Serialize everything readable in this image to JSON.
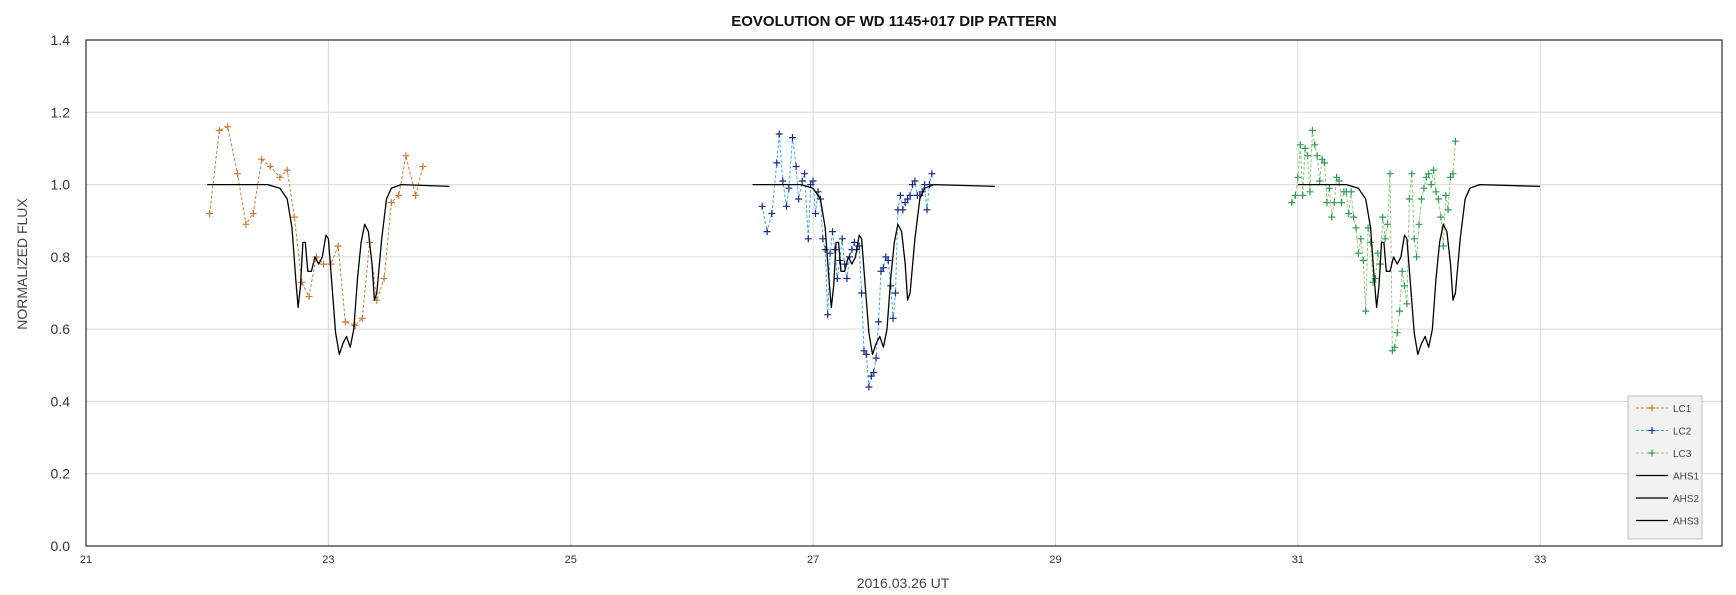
{
  "chart_data": {
    "type": "line",
    "title": "EOVOLUTION OF WD 1145+017 DIP PATTERN",
    "xlabel": "2016.03.26 UT",
    "ylabel": "NORMALIZED FLUX",
    "xlim": [
      21,
      34.5
    ],
    "ylim": [
      0,
      1.4
    ],
    "x_ticks": [
      "21",
      "23",
      "25",
      "27",
      "29",
      "31",
      "33"
    ],
    "y_ticks": [
      "0.0",
      "0.2",
      "0.4",
      "0.6",
      "0.8",
      "1.0",
      "1.2",
      "1.4"
    ],
    "grid": true,
    "legend_position": "bottom-right",
    "colors": {
      "LC1": "#c97d33",
      "LC2": "#1f2a8a",
      "LC2_line": "#3aaee0",
      "LC3": "#2e9e55",
      "LC3_line": "#8ccc72",
      "AHS": "#000000"
    },
    "series": [
      {
        "name": "LC1",
        "style": "dashed-markers",
        "points": [
          [
            22.02,
            0.92
          ],
          [
            22.1,
            1.15
          ],
          [
            22.17,
            1.16
          ],
          [
            22.25,
            1.03
          ],
          [
            22.32,
            0.89
          ],
          [
            22.38,
            0.92
          ],
          [
            22.45,
            1.07
          ],
          [
            22.52,
            1.05
          ],
          [
            22.6,
            1.02
          ],
          [
            22.66,
            1.04
          ],
          [
            22.72,
            0.91
          ],
          [
            22.78,
            0.73
          ],
          [
            22.84,
            0.69
          ],
          [
            22.9,
            0.8
          ],
          [
            22.96,
            0.78
          ],
          [
            23.02,
            0.78
          ],
          [
            23.08,
            0.83
          ],
          [
            23.14,
            0.62
          ],
          [
            23.22,
            0.61
          ],
          [
            23.28,
            0.63
          ],
          [
            23.34,
            0.84
          ],
          [
            23.4,
            0.68
          ],
          [
            23.46,
            0.74
          ],
          [
            23.52,
            0.95
          ],
          [
            23.58,
            0.97
          ],
          [
            23.64,
            1.08
          ],
          [
            23.72,
            0.97
          ],
          [
            23.78,
            1.05
          ]
        ]
      },
      {
        "name": "LC2",
        "style": "dashed-markers",
        "points": [
          [
            26.58,
            0.94
          ],
          [
            26.62,
            0.87
          ],
          [
            26.66,
            0.92
          ],
          [
            26.7,
            1.06
          ],
          [
            26.72,
            1.14
          ],
          [
            26.75,
            1.01
          ],
          [
            26.78,
            0.94
          ],
          [
            26.8,
            0.99
          ],
          [
            26.83,
            1.13
          ],
          [
            26.86,
            1.05
          ],
          [
            26.88,
            0.96
          ],
          [
            26.91,
            1.01
          ],
          [
            26.93,
            1.03
          ],
          [
            26.96,
            0.85
          ],
          [
            26.98,
            1.0
          ],
          [
            27.0,
            1.01
          ],
          [
            27.02,
            0.92
          ],
          [
            27.04,
            0.98
          ],
          [
            27.06,
            0.96
          ],
          [
            27.08,
            0.85
          ],
          [
            27.1,
            0.82
          ],
          [
            27.12,
            0.64
          ],
          [
            27.14,
            0.81
          ],
          [
            27.16,
            0.87
          ],
          [
            27.18,
            0.82
          ],
          [
            27.2,
            0.74
          ],
          [
            27.22,
            0.79
          ],
          [
            27.24,
            0.85
          ],
          [
            27.26,
            0.78
          ],
          [
            27.28,
            0.74
          ],
          [
            27.3,
            0.8
          ],
          [
            27.32,
            0.82
          ],
          [
            27.34,
            0.84
          ],
          [
            27.36,
            0.82
          ],
          [
            27.38,
            0.83
          ],
          [
            27.4,
            0.7
          ],
          [
            27.42,
            0.54
          ],
          [
            27.44,
            0.53
          ],
          [
            27.46,
            0.44
          ],
          [
            27.48,
            0.47
          ],
          [
            27.5,
            0.48
          ],
          [
            27.52,
            0.52
          ],
          [
            27.54,
            0.62
          ],
          [
            27.56,
            0.76
          ],
          [
            27.58,
            0.77
          ],
          [
            27.6,
            0.8
          ],
          [
            27.62,
            0.79
          ],
          [
            27.64,
            0.72
          ],
          [
            27.66,
            0.63
          ],
          [
            27.68,
            0.7
          ],
          [
            27.7,
            0.93
          ],
          [
            27.72,
            0.97
          ],
          [
            27.74,
            0.93
          ],
          [
            27.76,
            0.95
          ],
          [
            27.78,
            0.96
          ],
          [
            27.8,
            0.97
          ],
          [
            27.82,
            1.0
          ],
          [
            27.84,
            1.01
          ],
          [
            27.86,
            0.97
          ],
          [
            27.88,
            0.97
          ],
          [
            27.9,
            0.98
          ],
          [
            27.92,
            1.0
          ],
          [
            27.94,
            0.93
          ],
          [
            27.96,
            1.0
          ],
          [
            27.98,
            1.03
          ]
        ]
      },
      {
        "name": "LC3",
        "style": "dashed-markers",
        "points": [
          [
            30.95,
            0.95
          ],
          [
            30.98,
            0.97
          ],
          [
            31.0,
            1.02
          ],
          [
            31.02,
            1.11
          ],
          [
            31.04,
            0.97
          ],
          [
            31.06,
            1.1
          ],
          [
            31.08,
            1.08
          ],
          [
            31.1,
            0.98
          ],
          [
            31.12,
            1.15
          ],
          [
            31.14,
            1.11
          ],
          [
            31.16,
            1.08
          ],
          [
            31.18,
            1.01
          ],
          [
            31.2,
            1.07
          ],
          [
            31.22,
            1.06
          ],
          [
            31.24,
            0.95
          ],
          [
            31.26,
            0.99
          ],
          [
            31.28,
            0.91
          ],
          [
            31.3,
            0.95
          ],
          [
            31.32,
            1.02
          ],
          [
            31.34,
            1.01
          ],
          [
            31.36,
            0.95
          ],
          [
            31.38,
            0.98
          ],
          [
            31.4,
            0.98
          ],
          [
            31.42,
            0.92
          ],
          [
            31.44,
            0.98
          ],
          [
            31.46,
            0.91
          ],
          [
            31.48,
            0.88
          ],
          [
            31.5,
            0.81
          ],
          [
            31.52,
            0.85
          ],
          [
            31.54,
            0.79
          ],
          [
            31.56,
            0.65
          ],
          [
            31.58,
            0.88
          ],
          [
            31.6,
            0.84
          ],
          [
            31.62,
            0.73
          ],
          [
            31.64,
            0.74
          ],
          [
            31.66,
            0.81
          ],
          [
            31.68,
            0.78
          ],
          [
            31.7,
            0.91
          ],
          [
            31.72,
            0.85
          ],
          [
            31.74,
            0.89
          ],
          [
            31.76,
            1.03
          ],
          [
            31.78,
            0.54
          ],
          [
            31.8,
            0.55
          ],
          [
            31.82,
            0.59
          ],
          [
            31.84,
            0.65
          ],
          [
            31.86,
            0.76
          ],
          [
            31.88,
            0.72
          ],
          [
            31.9,
            0.67
          ],
          [
            31.92,
            0.96
          ],
          [
            31.94,
            1.03
          ],
          [
            31.96,
            0.85
          ],
          [
            31.98,
            0.8
          ],
          [
            32.0,
            0.89
          ],
          [
            32.02,
            0.96
          ],
          [
            32.04,
            0.99
          ],
          [
            32.06,
            1.02
          ],
          [
            32.08,
            1.03
          ],
          [
            32.1,
            1.0
          ],
          [
            32.12,
            1.04
          ],
          [
            32.14,
            0.98
          ],
          [
            32.16,
            0.96
          ],
          [
            32.18,
            0.91
          ],
          [
            32.2,
            0.83
          ],
          [
            32.22,
            0.97
          ],
          [
            32.24,
            0.93
          ],
          [
            32.26,
            1.02
          ],
          [
            32.28,
            1.03
          ],
          [
            32.3,
            1.12
          ]
        ]
      },
      {
        "name": "AHS1",
        "style": "solid",
        "points": [
          [
            22.0,
            1.0
          ],
          [
            22.5,
            1.0
          ],
          [
            22.6,
            0.99
          ],
          [
            22.66,
            0.96
          ],
          [
            22.7,
            0.88
          ],
          [
            22.73,
            0.74
          ],
          [
            22.75,
            0.66
          ],
          [
            22.77,
            0.72
          ],
          [
            22.79,
            0.84
          ],
          [
            22.81,
            0.84
          ],
          [
            22.83,
            0.76
          ],
          [
            22.86,
            0.76
          ],
          [
            22.89,
            0.8
          ],
          [
            22.92,
            0.78
          ],
          [
            22.95,
            0.8
          ],
          [
            22.98,
            0.86
          ],
          [
            23.0,
            0.85
          ],
          [
            23.03,
            0.72
          ],
          [
            23.06,
            0.59
          ],
          [
            23.09,
            0.53
          ],
          [
            23.12,
            0.56
          ],
          [
            23.15,
            0.58
          ],
          [
            23.18,
            0.55
          ],
          [
            23.21,
            0.6
          ],
          [
            23.24,
            0.74
          ],
          [
            23.27,
            0.84
          ],
          [
            23.3,
            0.89
          ],
          [
            23.33,
            0.87
          ],
          [
            23.36,
            0.78
          ],
          [
            23.38,
            0.68
          ],
          [
            23.4,
            0.7
          ],
          [
            23.44,
            0.85
          ],
          [
            23.48,
            0.96
          ],
          [
            23.52,
            0.99
          ],
          [
            23.6,
            1.0
          ],
          [
            24.0,
            0.995
          ]
        ]
      },
      {
        "name": "AHS2",
        "style": "solid",
        "points": [
          [
            26.5,
            1.0
          ],
          [
            26.9,
            1.0
          ],
          [
            27.0,
            0.99
          ],
          [
            27.06,
            0.96
          ],
          [
            27.1,
            0.88
          ],
          [
            27.13,
            0.74
          ],
          [
            27.15,
            0.66
          ],
          [
            27.17,
            0.72
          ],
          [
            27.19,
            0.84
          ],
          [
            27.21,
            0.84
          ],
          [
            27.23,
            0.76
          ],
          [
            27.26,
            0.76
          ],
          [
            27.29,
            0.8
          ],
          [
            27.32,
            0.78
          ],
          [
            27.35,
            0.8
          ],
          [
            27.38,
            0.86
          ],
          [
            27.4,
            0.85
          ],
          [
            27.43,
            0.72
          ],
          [
            27.46,
            0.59
          ],
          [
            27.49,
            0.53
          ],
          [
            27.52,
            0.56
          ],
          [
            27.55,
            0.58
          ],
          [
            27.58,
            0.55
          ],
          [
            27.61,
            0.6
          ],
          [
            27.64,
            0.74
          ],
          [
            27.67,
            0.84
          ],
          [
            27.7,
            0.89
          ],
          [
            27.73,
            0.87
          ],
          [
            27.76,
            0.78
          ],
          [
            27.78,
            0.68
          ],
          [
            27.8,
            0.7
          ],
          [
            27.84,
            0.85
          ],
          [
            27.88,
            0.96
          ],
          [
            27.92,
            0.99
          ],
          [
            28.0,
            1.0
          ],
          [
            28.5,
            0.995
          ]
        ]
      },
      {
        "name": "AHS3",
        "style": "solid",
        "points": [
          [
            31.0,
            1.0
          ],
          [
            31.4,
            1.0
          ],
          [
            31.5,
            0.99
          ],
          [
            31.56,
            0.96
          ],
          [
            31.6,
            0.88
          ],
          [
            31.63,
            0.74
          ],
          [
            31.65,
            0.66
          ],
          [
            31.67,
            0.72
          ],
          [
            31.69,
            0.84
          ],
          [
            31.71,
            0.84
          ],
          [
            31.73,
            0.76
          ],
          [
            31.76,
            0.76
          ],
          [
            31.79,
            0.8
          ],
          [
            31.82,
            0.78
          ],
          [
            31.85,
            0.8
          ],
          [
            31.88,
            0.86
          ],
          [
            31.9,
            0.85
          ],
          [
            31.93,
            0.72
          ],
          [
            31.96,
            0.59
          ],
          [
            31.99,
            0.53
          ],
          [
            32.02,
            0.56
          ],
          [
            32.05,
            0.58
          ],
          [
            32.08,
            0.55
          ],
          [
            32.11,
            0.6
          ],
          [
            32.14,
            0.74
          ],
          [
            32.17,
            0.84
          ],
          [
            32.2,
            0.89
          ],
          [
            32.23,
            0.87
          ],
          [
            32.26,
            0.78
          ],
          [
            32.28,
            0.68
          ],
          [
            32.3,
            0.7
          ],
          [
            32.34,
            0.85
          ],
          [
            32.38,
            0.96
          ],
          [
            32.42,
            0.99
          ],
          [
            32.5,
            1.0
          ],
          [
            33.0,
            0.995
          ]
        ]
      }
    ]
  }
}
